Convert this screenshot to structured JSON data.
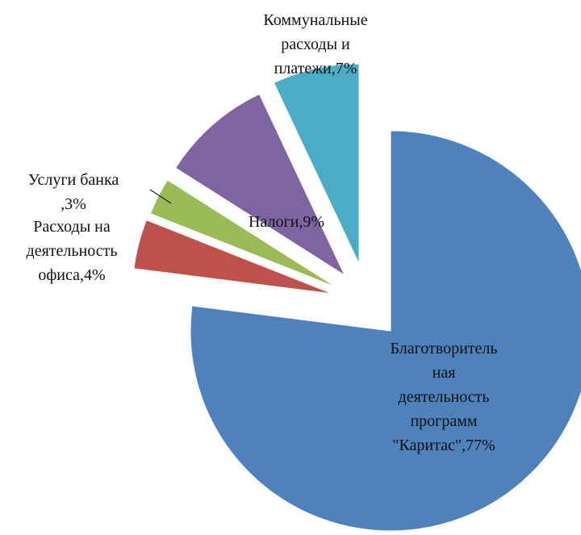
{
  "chart_data": {
    "type": "pie",
    "exploded": true,
    "start_angle_deg": 0,
    "direction": "clockwise",
    "slices": [
      {
        "name": "Благотворительная деятельность программ \"Каритас\"",
        "value": 77,
        "label_lines": [
          "Благотворитель",
          "ная",
          "деятельность",
          "программ",
          "\"Каритас\",77%"
        ],
        "color": "#4F81BD"
      },
      {
        "name": "Расходы на деятельность офиса",
        "value": 4,
        "label_lines": [
          "Расходы на",
          "деятельность",
          "офиса,4%"
        ],
        "color": "#C0504D"
      },
      {
        "name": "Услуги банка",
        "value": 3,
        "label_lines": [
          "Услуги банка",
          ",3%"
        ],
        "color": "#9BBB59"
      },
      {
        "name": "Налоги",
        "value": 9,
        "label_lines": [
          "Налоги,9%"
        ],
        "color": "#8064A2"
      },
      {
        "name": "Коммунальные расходы и платежи",
        "value": 7,
        "label_lines": [
          "Коммунальные",
          "расходы и",
          "платежи,7%"
        ],
        "color": "#4BACC6"
      }
    ]
  }
}
